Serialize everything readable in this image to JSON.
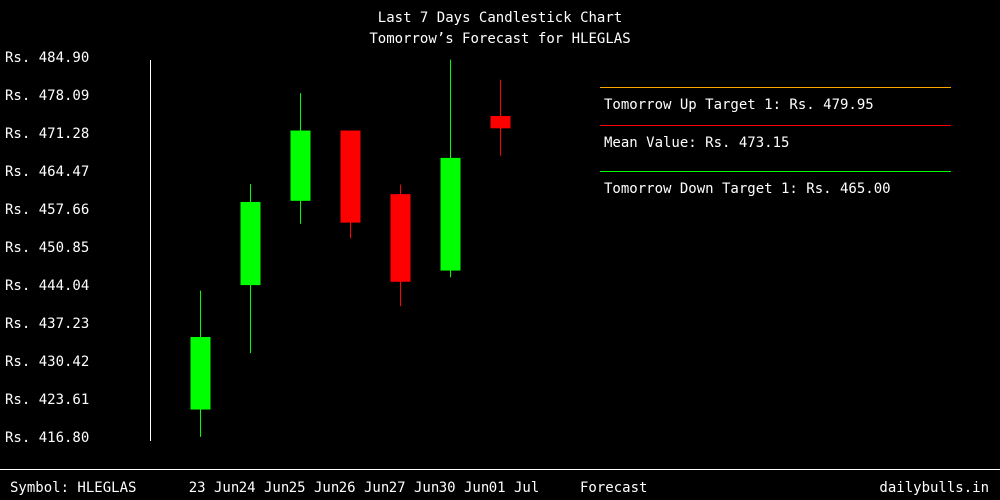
{
  "colors": {
    "background": "#000000",
    "text": "#ffffff",
    "up": "#00ff00",
    "down": "#ff0000",
    "up_target_line": "#ffa500",
    "mean_line": "#ff0000",
    "down_target_line": "#00ff00"
  },
  "footer": {
    "symbol_text": "Symbol: HLEGLAS",
    "forecast_label": "Forecast",
    "site": "dailybulls.in"
  },
  "forecast": {
    "up_target_text": "Tomorrow Up Target 1: Rs. 479.95",
    "mean_text": "Mean Value: Rs. 473.15",
    "down_target_text": "Tomorrow Down Target 1: Rs. 465.00"
  },
  "chart_data": {
    "type": "candlestick",
    "title": "Last 7 Days Candlestick Chart",
    "subtitle": "Tomorrow’s Forecast for HLEGLAS",
    "ylim": [
      416.8,
      484.9
    ],
    "yticks": [
      "Rs. 484.90",
      "Rs. 478.09",
      "Rs. 471.28",
      "Rs. 464.47",
      "Rs. 457.66",
      "Rs. 450.85",
      "Rs. 444.04",
      "Rs. 437.23",
      "Rs. 430.42",
      "Rs. 423.61",
      "Rs. 416.80"
    ],
    "ytick_values": [
      484.9,
      478.09,
      471.28,
      464.47,
      457.66,
      450.85,
      444.04,
      437.23,
      430.42,
      423.61,
      416.8
    ],
    "categories": [
      "23 Jun",
      "24 Jun",
      "25 Jun",
      "26 Jun",
      "27 Jun",
      "30 Jun",
      "01 Jul"
    ],
    "candles": [
      {
        "date": "23 Jun",
        "open": 421.9,
        "high": 443.2,
        "low": 417.0,
        "close": 434.9
      },
      {
        "date": "24 Jun",
        "open": 444.2,
        "high": 462.3,
        "low": 432.0,
        "close": 459.1
      },
      {
        "date": "25 Jun",
        "open": 459.3,
        "high": 478.6,
        "low": 455.2,
        "close": 471.9
      },
      {
        "date": "26 Jun",
        "open": 471.9,
        "high": 471.9,
        "low": 452.6,
        "close": 455.4
      },
      {
        "date": "27 Jun",
        "open": 460.5,
        "high": 462.2,
        "low": 440.4,
        "close": 444.8
      },
      {
        "date": "30 Jun",
        "open": 446.8,
        "high": 484.6,
        "low": 445.6,
        "close": 467.0
      },
      {
        "date": "01 Jul",
        "open": 474.5,
        "high": 481.0,
        "low": 467.4,
        "close": 472.3
      }
    ],
    "forecast_levels": {
      "up_target": 479.95,
      "mean": 473.15,
      "down_target": 465.0
    }
  }
}
